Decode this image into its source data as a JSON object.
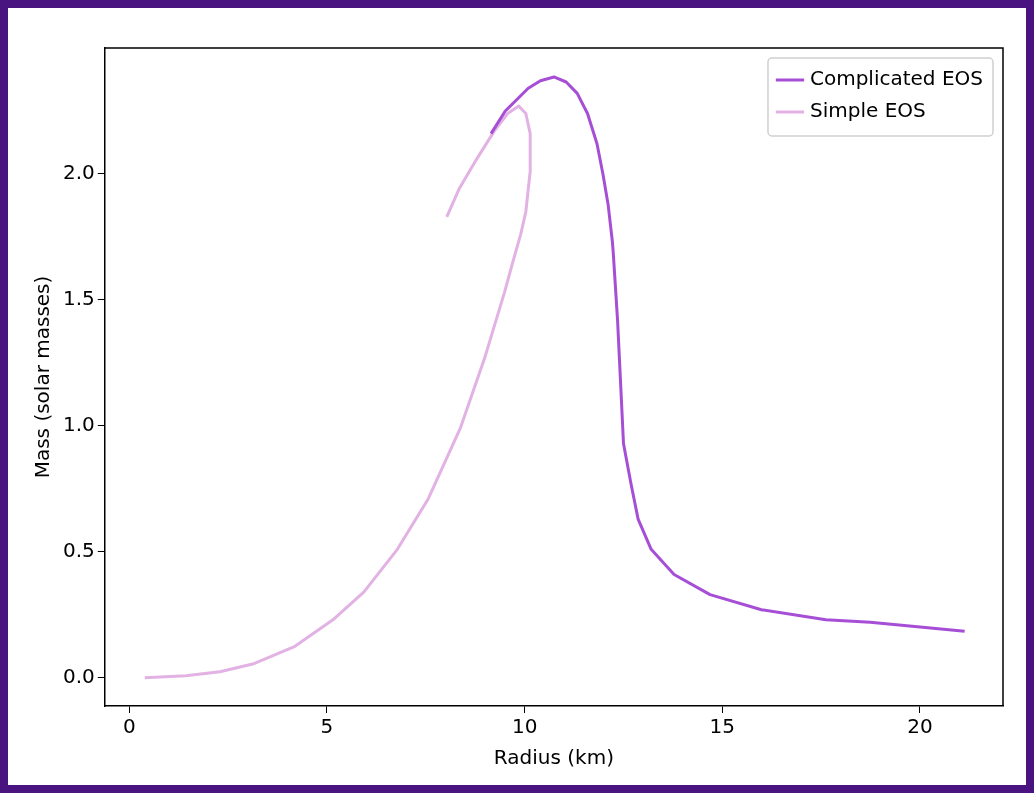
{
  "chart_data": {
    "type": "line",
    "xlabel": "Radius (km)",
    "ylabel": "Mass (solar masses)",
    "xlim": [
      -0.62,
      22.1
    ],
    "ylim": [
      -0.112,
      2.5
    ],
    "xticks": [
      0,
      5,
      10,
      15,
      20
    ],
    "yticks": [
      {
        "value": 0,
        "label": "0.0"
      },
      0.5,
      {
        "value": 1,
        "label": "1.0"
      },
      1.5,
      {
        "value": 2,
        "label": "2.0"
      }
    ],
    "grid": false,
    "legend": "top right",
    "marker": "none",
    "line_style": "solid",
    "series": [
      {
        "name": "Complicated EOS",
        "color": "#a64fd6",
        "x": [
          9.15,
          9.51,
          10.09,
          10.4,
          10.74,
          11.05,
          11.33,
          11.59,
          11.83,
          11.98,
          12.11,
          12.22,
          12.24,
          12.35,
          12.43,
          12.5,
          12.69,
          12.87,
          13.2,
          13.78,
          14.69,
          15.99,
          17.62,
          18.74,
          21.13
        ],
        "values": [
          2.16,
          2.25,
          2.34,
          2.37,
          2.385,
          2.365,
          2.32,
          2.24,
          2.12,
          2.0,
          1.88,
          1.73,
          1.69,
          1.42,
          1.16,
          0.93,
          0.77,
          0.63,
          0.51,
          0.41,
          0.33,
          0.27,
          0.23,
          0.22,
          0.185
        ]
      },
      {
        "name": "Simple EOS",
        "color": "#e2b2e4",
        "x": [
          8.03,
          8.34,
          8.79,
          9.23,
          9.57,
          9.85,
          10.03,
          10.14,
          10.14,
          10.03,
          9.9,
          9.7,
          9.49,
          8.99,
          8.37,
          7.56,
          6.78,
          5.93,
          5.15,
          4.19,
          3.15,
          2.29,
          1.43,
          0.39
        ],
        "values": [
          1.83,
          1.94,
          2.06,
          2.17,
          2.24,
          2.27,
          2.24,
          2.16,
          2.01,
          1.85,
          1.76,
          1.65,
          1.53,
          1.27,
          0.99,
          0.71,
          0.51,
          0.34,
          0.23,
          0.125,
          0.056,
          0.024,
          0.008,
          0.0
        ]
      }
    ]
  }
}
